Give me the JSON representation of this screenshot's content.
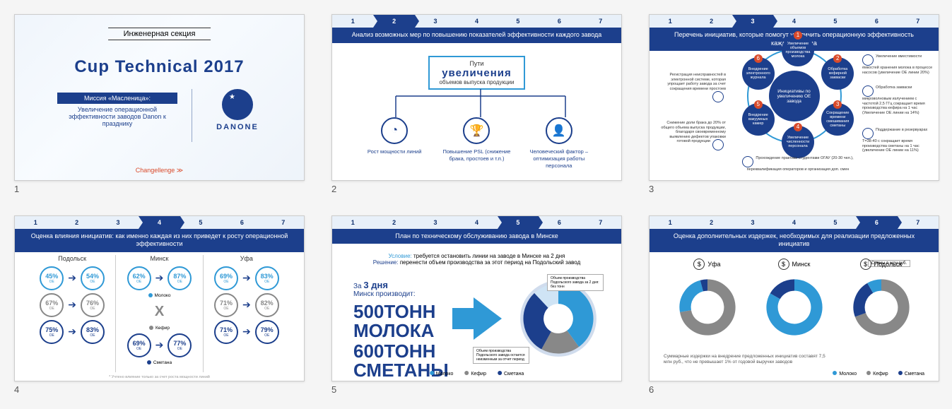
{
  "colors": {
    "primary": "#1c3f8c",
    "accent": "#2f99d6",
    "grey": "#888888",
    "red": "#d94a2a",
    "bg_light": "#e8f0f9"
  },
  "slide1": {
    "section": "Инженерная секция",
    "title": "Cup Technical 2017",
    "mission_head": "Миссия «Масленица»:",
    "mission_body": "Увеличение операционной эффективности заводов Danon к празднику",
    "logo": "DANONE",
    "footer": "Changellenge"
  },
  "slide2": {
    "active": 2,
    "title": "Анализ возможных мер по повышению показателей эффективности каждого завода",
    "path_l1": "Пути",
    "path_l2": "увеличения",
    "path_l3": "объемов выпуска продукции",
    "icon1": "Рост мощности линий",
    "icon1_glyph": "◔",
    "icon2": "Повышение PSL (снижение брака, простоев и т.п.)",
    "icon2_glyph": "🏆",
    "icon3": "Человеческий фактор – оптимизация работы персонала",
    "icon3_glyph": "👤"
  },
  "slide3": {
    "active": 3,
    "title": "Перечень инициатив, которые помогут увеличить операционную эффективность каждого завода",
    "center": "Инициативы по увеличению OE завода",
    "nodes": [
      {
        "n": "1",
        "label": "Увеличение объемов производства молока"
      },
      {
        "n": "2",
        "label": "Обработка кефирной закваски"
      },
      {
        "n": "3",
        "label": "Сокращение времени смешивания сметаны"
      },
      {
        "n": "4",
        "label": "Увеличение численности персонала"
      },
      {
        "n": "5",
        "label": "Внедрение вакуумных камер"
      },
      {
        "n": "6",
        "label": "Внедрение электронного журнала"
      }
    ],
    "desc_tr": "Увеличение вместимости ёмкостей хранения молока в процессе насосов (увеличение OE линии 20%)",
    "desc_r": "Обработка закваски микроволновым излучением с частотой 2,5 ГГц сокращает время производства кефира на 1 час (Увеличение OE линии на 14%)",
    "desc_br": "Поддержание в резервуарах T=38-40 с сокращает время производства сметаны на 1 час (увеличение OE линии на 11%)",
    "desc_bl": "Прохождение практики студентами ОГАУ (20-30 чел.), переквалификация операторов и организация доп. смен",
    "desc_l": "Снижение доли брака до 20% от общего объема выпуска продукции, благодаря своевременному выявлению дефектов упаковки готовой продукции",
    "desc_tl": "Регистрация неисправностей в электронной системе, которая упрощает работу завода за счет сокращения времени простоев"
  },
  "slide4": {
    "active": 4,
    "title": "Оценка влияния инициатив: как именно каждая из них приведет к росту операционной эффективности",
    "cities": [
      "Подольск",
      "Минск",
      "Уфа"
    ],
    "legend_moloko": "Молоко",
    "legend_kefir": "Кефир",
    "legend_smetana": "Сметана",
    "footnote": "* Учтено влияние только за счет роста мощности линий",
    "data": {
      "podolsk": [
        [
          "45%",
          "54%",
          "#2f99d6"
        ],
        [
          "67%",
          "76%",
          "#888"
        ],
        [
          "75%",
          "83%",
          "#1c3f8c"
        ]
      ],
      "minsk": [
        [
          "62%",
          "87%",
          "#2f99d6"
        ],
        [
          "X",
          "",
          ""
        ],
        [
          "69%",
          "77%",
          "#1c3f8c"
        ]
      ],
      "ufa": [
        [
          "69%",
          "83%",
          "#2f99d6"
        ],
        [
          "71%",
          "82%",
          "#888"
        ],
        [
          "71%",
          "79%",
          "#1c3f8c"
        ]
      ]
    }
  },
  "slide5": {
    "active": 5,
    "title": "План по техническому обслуживанию завода в Минске",
    "cond_label": "Условие:",
    "cond_text": "требуется остановить линии на заводе в Минске на 2 дня",
    "sol_label": "Решение:",
    "sol_text": "перенести объем производства за этот период на Подольский завод",
    "days_pre": "За",
    "days": "3 дня",
    "days_post": "Минск производит:",
    "n1": "500",
    "u1": "ТОНН\nМОЛОКА",
    "n2": "600",
    "u2": "ТОНН\nСМЕТАНЫ",
    "annot_top": "Объем производства Подольского завода за 2 дня: без тонн",
    "annot_bot": "Объем производства Подольского завода остается неизменным за отчет период",
    "donut": {
      "slices": [
        {
          "color": "#2f99d6",
          "value": 40
        },
        {
          "color": "#888",
          "value": 18
        },
        {
          "color": "#1c3f8c",
          "value": 30
        },
        {
          "color": "#cfe4f5",
          "value": 12
        }
      ]
    },
    "legend": [
      "Молоко",
      "Кефир",
      "Сметана"
    ],
    "legend_colors": [
      "#2f99d6",
      "#888",
      "#1c3f8c"
    ]
  },
  "slide6": {
    "active": 6,
    "title": "Оценка дополнительных издержек, необходимых для реализации предложенных инициатив",
    "cities": [
      "Уфа",
      "Минск",
      "Подольск"
    ],
    "tag": "Суммы в млн руб.",
    "donuts": [
      {
        "arcs": [
          {
            "color": "#888",
            "start": 0,
            "end": 260
          },
          {
            "color": "#2f99d6",
            "start": 260,
            "end": 345
          },
          {
            "color": "#1c3f8c",
            "start": 345,
            "end": 360
          }
        ]
      },
      {
        "arcs": [
          {
            "color": "#2f99d6",
            "start": 0,
            "end": 300
          },
          {
            "color": "#1c3f8c",
            "start": 300,
            "end": 360
          }
        ]
      },
      {
        "arcs": [
          {
            "color": "#888",
            "start": 0,
            "end": 250
          },
          {
            "color": "#1c3f8c",
            "start": 250,
            "end": 330
          },
          {
            "color": "#2f99d6",
            "start": 330,
            "end": 360
          }
        ]
      }
    ],
    "footer": "Суммарные издержки на внедрение предложенных инициатив составят 7,5 млн руб., что не превышает 1% от годовой выручки заводов",
    "legend": [
      "Молоко",
      "Кефир",
      "Сметана"
    ],
    "legend_colors": [
      "#2f99d6",
      "#888",
      "#1c3f8c"
    ]
  }
}
